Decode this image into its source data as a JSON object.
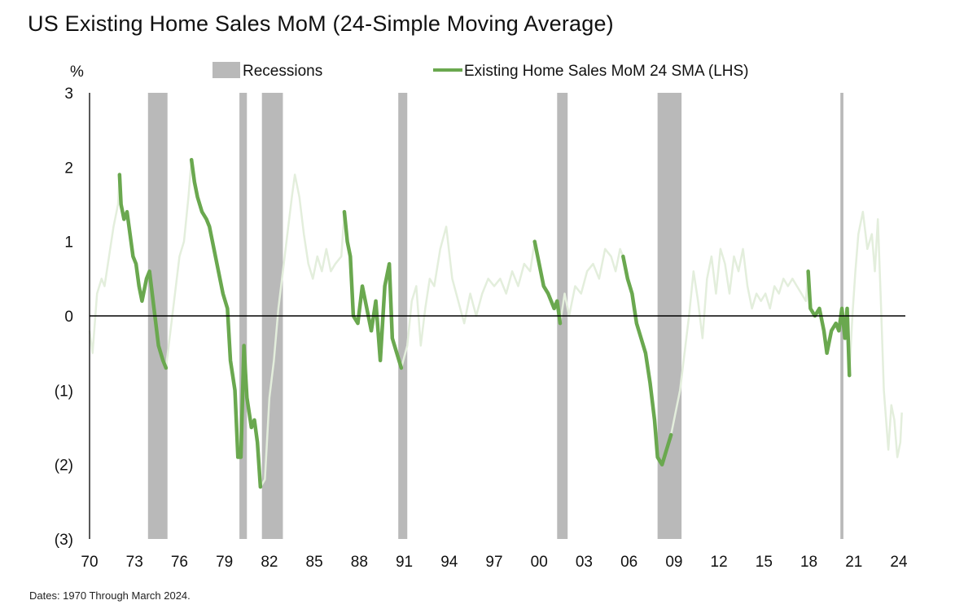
{
  "title": "US Existing Home Sales MoM (24-Simple Moving Average)",
  "footnote": "Dates: 1970 Through March 2024.",
  "chart_data": {
    "type": "line",
    "title": "US Existing Home Sales MoM (24-Simple Moving Average)",
    "ylabel": "%",
    "xlabel": "",
    "xlim": [
      1970,
      2024.5
    ],
    "ylim": [
      -3,
      3
    ],
    "y_ticks": [
      3,
      2,
      1,
      0,
      -1,
      -2,
      -3
    ],
    "y_tick_labels": [
      "3",
      "2",
      "1",
      "0",
      "(1)",
      "(2)",
      "(3)"
    ],
    "x_ticks": [
      1970,
      1973,
      1976,
      1979,
      1982,
      1985,
      1988,
      1991,
      1994,
      1997,
      2000,
      2003,
      2006,
      2009,
      2012,
      2015,
      2018,
      2021,
      2024
    ],
    "x_tick_labels": [
      "70",
      "73",
      "76",
      "79",
      "82",
      "85",
      "88",
      "91",
      "94",
      "97",
      "00",
      "03",
      "06",
      "09",
      "12",
      "15",
      "18",
      "21",
      "24"
    ],
    "legend": {
      "position": "top",
      "recession_label": "Recessions",
      "series_label": "Existing Home Sales MoM 24 SMA (LHS)"
    },
    "colors": {
      "series": "#6aa84f",
      "series_faded": "#e3eedc",
      "recession": "#b9b9b9",
      "zero_line": "#000000"
    },
    "recessions": [
      [
        1973.9,
        1975.2
      ],
      [
        1980.0,
        1980.5
      ],
      [
        1981.5,
        1982.9
      ],
      [
        1990.6,
        1991.2
      ],
      [
        2001.2,
        2001.9
      ],
      [
        2007.9,
        2009.5
      ],
      [
        2020.1,
        2020.3
      ]
    ],
    "series": [
      {
        "name": "Existing Home Sales MoM 24 SMA (LHS)",
        "points": [
          [
            1970.0,
            -0.2
          ],
          [
            1970.2,
            -0.5
          ],
          [
            1970.5,
            0.3
          ],
          [
            1970.8,
            0.5
          ],
          [
            1971.0,
            0.4
          ],
          [
            1971.3,
            0.8
          ],
          [
            1971.6,
            1.2
          ],
          [
            1971.9,
            1.5
          ],
          [
            1972.0,
            1.9
          ],
          [
            1972.1,
            1.5
          ],
          [
            1972.3,
            1.3
          ],
          [
            1972.5,
            1.4
          ],
          [
            1972.7,
            1.1
          ],
          [
            1972.9,
            0.8
          ],
          [
            1973.1,
            0.7
          ],
          [
            1973.3,
            0.4
          ],
          [
            1973.5,
            0.2
          ],
          [
            1973.8,
            0.5
          ],
          [
            1974.0,
            0.6
          ],
          [
            1974.3,
            0.1
          ],
          [
            1974.6,
            -0.4
          ],
          [
            1974.9,
            -0.6
          ],
          [
            1975.1,
            -0.7
          ],
          [
            1975.4,
            -0.2
          ],
          [
            1975.7,
            0.3
          ],
          [
            1976.0,
            0.8
          ],
          [
            1976.3,
            1.0
          ],
          [
            1976.6,
            1.6
          ],
          [
            1976.8,
            2.1
          ],
          [
            1977.0,
            1.8
          ],
          [
            1977.2,
            1.6
          ],
          [
            1977.5,
            1.4
          ],
          [
            1977.8,
            1.3
          ],
          [
            1978.0,
            1.2
          ],
          [
            1978.3,
            0.9
          ],
          [
            1978.6,
            0.6
          ],
          [
            1978.9,
            0.3
          ],
          [
            1979.2,
            0.1
          ],
          [
            1979.4,
            -0.6
          ],
          [
            1979.7,
            -1.0
          ],
          [
            1979.9,
            -1.9
          ],
          [
            1980.1,
            -1.9
          ],
          [
            1980.3,
            -0.4
          ],
          [
            1980.5,
            -1.1
          ],
          [
            1980.8,
            -1.5
          ],
          [
            1981.0,
            -1.4
          ],
          [
            1981.2,
            -1.7
          ],
          [
            1981.4,
            -2.3
          ],
          [
            1981.7,
            -2.2
          ],
          [
            1982.0,
            -1.1
          ],
          [
            1982.3,
            -0.6
          ],
          [
            1982.6,
            0.1
          ],
          [
            1982.9,
            0.6
          ],
          [
            1983.2,
            1.1
          ],
          [
            1983.5,
            1.6
          ],
          [
            1983.7,
            1.9
          ],
          [
            1984.0,
            1.6
          ],
          [
            1984.3,
            1.1
          ],
          [
            1984.6,
            0.7
          ],
          [
            1984.9,
            0.5
          ],
          [
            1985.2,
            0.8
          ],
          [
            1985.5,
            0.6
          ],
          [
            1985.8,
            0.9
          ],
          [
            1986.1,
            0.6
          ],
          [
            1986.4,
            0.7
          ],
          [
            1986.8,
            0.8
          ],
          [
            1987.0,
            1.4
          ],
          [
            1987.2,
            1.0
          ],
          [
            1987.4,
            0.8
          ],
          [
            1987.6,
            0.0
          ],
          [
            1987.9,
            -0.1
          ],
          [
            1988.2,
            0.4
          ],
          [
            1988.5,
            0.1
          ],
          [
            1988.8,
            -0.2
          ],
          [
            1989.1,
            0.2
          ],
          [
            1989.4,
            -0.6
          ],
          [
            1989.7,
            0.4
          ],
          [
            1990.0,
            0.7
          ],
          [
            1990.2,
            -0.3
          ],
          [
            1990.5,
            -0.5
          ],
          [
            1990.8,
            -0.7
          ],
          [
            1991.2,
            -0.4
          ],
          [
            1991.5,
            0.2
          ],
          [
            1991.8,
            0.4
          ],
          [
            1992.1,
            -0.4
          ],
          [
            1992.4,
            0.1
          ],
          [
            1992.7,
            0.5
          ],
          [
            1993.0,
            0.4
          ],
          [
            1993.4,
            0.9
          ],
          [
            1993.8,
            1.2
          ],
          [
            1994.2,
            0.5
          ],
          [
            1994.6,
            0.2
          ],
          [
            1995.0,
            -0.1
          ],
          [
            1995.4,
            0.3
          ],
          [
            1995.8,
            0.0
          ],
          [
            1996.2,
            0.3
          ],
          [
            1996.6,
            0.5
          ],
          [
            1997.0,
            0.4
          ],
          [
            1997.4,
            0.5
          ],
          [
            1997.8,
            0.3
          ],
          [
            1998.2,
            0.6
          ],
          [
            1998.6,
            0.4
          ],
          [
            1999.0,
            0.7
          ],
          [
            1999.4,
            0.6
          ],
          [
            1999.7,
            1.0
          ],
          [
            2000.0,
            0.7
          ],
          [
            2000.3,
            0.4
          ],
          [
            2000.6,
            0.3
          ],
          [
            2001.0,
            0.1
          ],
          [
            2001.2,
            0.2
          ],
          [
            2001.4,
            -0.1
          ],
          [
            2001.7,
            0.3
          ],
          [
            2002.0,
            0.0
          ],
          [
            2002.4,
            0.4
          ],
          [
            2002.8,
            0.3
          ],
          [
            2003.2,
            0.6
          ],
          [
            2003.6,
            0.7
          ],
          [
            2004.0,
            0.5
          ],
          [
            2004.4,
            0.9
          ],
          [
            2004.8,
            0.8
          ],
          [
            2005.1,
            0.6
          ],
          [
            2005.4,
            0.9
          ],
          [
            2005.6,
            0.8
          ],
          [
            2005.9,
            0.5
          ],
          [
            2006.2,
            0.3
          ],
          [
            2006.5,
            -0.1
          ],
          [
            2006.8,
            -0.3
          ],
          [
            2007.1,
            -0.5
          ],
          [
            2007.4,
            -0.9
          ],
          [
            2007.7,
            -1.4
          ],
          [
            2007.9,
            -1.9
          ],
          [
            2008.2,
            -2.0
          ],
          [
            2008.5,
            -1.8
          ],
          [
            2008.8,
            -1.6
          ],
          [
            2009.1,
            -1.3
          ],
          [
            2009.4,
            -1.0
          ],
          [
            2009.7,
            -0.5
          ],
          [
            2010.0,
            0.0
          ],
          [
            2010.3,
            0.6
          ],
          [
            2010.6,
            0.2
          ],
          [
            2010.9,
            -0.3
          ],
          [
            2011.2,
            0.5
          ],
          [
            2011.5,
            0.8
          ],
          [
            2011.8,
            0.3
          ],
          [
            2012.1,
            0.9
          ],
          [
            2012.4,
            0.7
          ],
          [
            2012.7,
            0.3
          ],
          [
            2013.0,
            0.8
          ],
          [
            2013.3,
            0.6
          ],
          [
            2013.6,
            0.9
          ],
          [
            2013.9,
            0.4
          ],
          [
            2014.2,
            0.1
          ],
          [
            2014.5,
            0.3
          ],
          [
            2014.8,
            0.2
          ],
          [
            2015.1,
            0.3
          ],
          [
            2015.4,
            0.1
          ],
          [
            2015.7,
            0.4
          ],
          [
            2016.0,
            0.3
          ],
          [
            2016.3,
            0.5
          ],
          [
            2016.6,
            0.4
          ],
          [
            2016.9,
            0.5
          ],
          [
            2017.2,
            0.4
          ],
          [
            2017.5,
            0.3
          ],
          [
            2017.8,
            0.2
          ],
          [
            2017.95,
            0.6
          ],
          [
            2018.1,
            0.1
          ],
          [
            2018.4,
            0.0
          ],
          [
            2018.7,
            0.1
          ],
          [
            2019.0,
            -0.2
          ],
          [
            2019.2,
            -0.5
          ],
          [
            2019.5,
            -0.2
          ],
          [
            2019.8,
            -0.1
          ],
          [
            2020.0,
            -0.2
          ],
          [
            2020.2,
            0.1
          ],
          [
            2020.4,
            -0.3
          ],
          [
            2020.55,
            0.1
          ],
          [
            2020.7,
            -0.8
          ],
          [
            2020.9,
            0.0
          ],
          [
            2021.1,
            0.6
          ],
          [
            2021.3,
            1.1
          ],
          [
            2021.6,
            1.4
          ],
          [
            2021.9,
            0.9
          ],
          [
            2022.2,
            1.1
          ],
          [
            2022.4,
            0.6
          ],
          [
            2022.6,
            1.3
          ],
          [
            2022.8,
            0.2
          ],
          [
            2023.0,
            -1.0
          ],
          [
            2023.3,
            -1.8
          ],
          [
            2023.5,
            -1.2
          ],
          [
            2023.7,
            -1.4
          ],
          [
            2023.9,
            -1.9
          ],
          [
            2024.1,
            -1.7
          ],
          [
            2024.2,
            -1.3
          ]
        ]
      }
    ],
    "highlight_segments": [
      [
        1972.0,
        1975.1
      ],
      [
        1976.8,
        1981.4
      ],
      [
        1987.0,
        1990.8
      ],
      [
        1999.7,
        2001.4
      ],
      [
        2005.6,
        2008.8
      ],
      [
        2017.95,
        2020.7
      ]
    ]
  }
}
